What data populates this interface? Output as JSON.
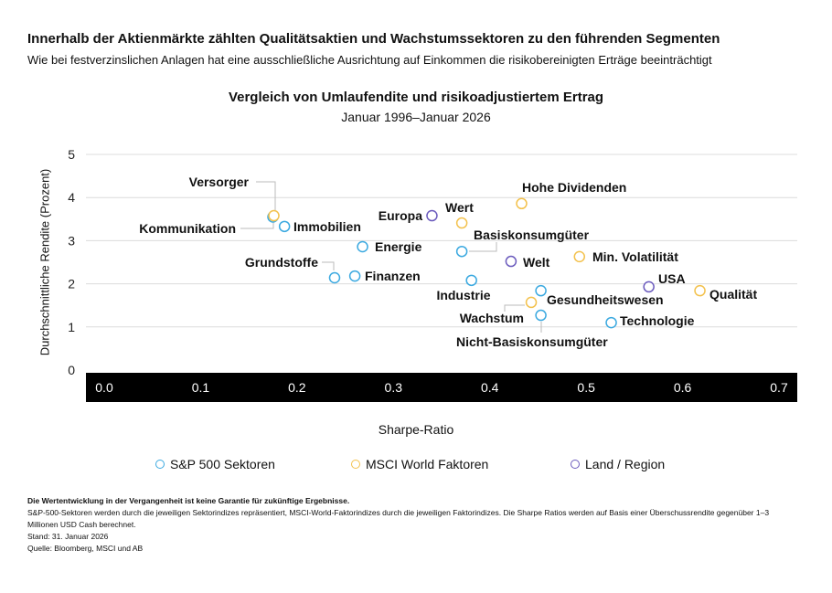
{
  "header": {
    "title": "Innerhalb der Aktienmärkte zählten Qualitätsaktien und Wachstumssektoren zu den führenden Segmenten",
    "subtitle": "Wie bei festverzinslichen Anlagen hat eine ausschließliche Ausrichtung auf Einkommen die risikobereinigten Erträge beeinträchtigt"
  },
  "chart_data": {
    "type": "scatter",
    "title": "Vergleich von Umlaufendite und risikoadjustiertem Ertrag",
    "subtitle": "Januar 1996–Januar 2026",
    "xlabel": "Sharpe-Ratio",
    "ylabel": "Durchschnittliche Rendite (Prozent)",
    "xlim": [
      0,
      0.7
    ],
    "ylim": [
      0,
      5
    ],
    "xticks": [
      "0.0",
      "0.1",
      "0.2",
      "0.3",
      "0.4",
      "0.5",
      "0.6",
      "0.7"
    ],
    "yticks": [
      "0",
      "1",
      "2",
      "3",
      "4",
      "5"
    ],
    "grid": true,
    "legend_position": "bottom",
    "colors": {
      "S&P 500 Sektoren": "#3ba9e0",
      "MSCI World Faktoren": "#f3c14c",
      "Land / Region": "#6b5bbd"
    },
    "series": [
      {
        "name": "S&P 500 Sektoren",
        "points": [
          {
            "label": "Kommunikation",
            "x": 0.175,
            "y": 3.55
          },
          {
            "label": "Immobilien",
            "x": 0.187,
            "y": 3.33
          },
          {
            "label": "Energie",
            "x": 0.268,
            "y": 2.86
          },
          {
            "label": "Basiskonsumgüter",
            "x": 0.371,
            "y": 2.75
          },
          {
            "label": "Grundstoffe",
            "x": 0.239,
            "y": 2.14
          },
          {
            "label": "Finanzen",
            "x": 0.26,
            "y": 2.18
          },
          {
            "label": "Industrie",
            "x": 0.381,
            "y": 2.08
          },
          {
            "label": "Gesundheitswesen",
            "x": 0.453,
            "y": 1.84
          },
          {
            "label": "Nicht-Basiskonsumgüter",
            "x": 0.453,
            "y": 1.27
          },
          {
            "label": "Technologie",
            "x": 0.526,
            "y": 1.1
          }
        ]
      },
      {
        "name": "MSCI World Faktoren",
        "points": [
          {
            "label": "Versorger",
            "x": 0.176,
            "y": 3.58
          },
          {
            "label": "Wert",
            "x": 0.371,
            "y": 3.41
          },
          {
            "label": "Hohe Dividenden",
            "x": 0.433,
            "y": 3.86
          },
          {
            "label": "Min. Volatilität",
            "x": 0.493,
            "y": 2.63
          },
          {
            "label": "Qualität",
            "x": 0.618,
            "y": 1.84
          },
          {
            "label": "Wachstum",
            "x": 0.443,
            "y": 1.57
          }
        ]
      },
      {
        "name": "Land / Region",
        "points": [
          {
            "label": "Europa",
            "x": 0.34,
            "y": 3.58
          },
          {
            "label": "Welt",
            "x": 0.422,
            "y": 2.52
          },
          {
            "label": "USA",
            "x": 0.565,
            "y": 1.93
          }
        ]
      }
    ]
  },
  "footer": {
    "disclaimer": "Die Wertentwicklung in der Vergangenheit ist keine Garantie für zukünftige Ergebnisse.",
    "note": "S&P-500-Sektoren werden durch die jeweiligen Sektorindizes repräsentiert, MSCI-World-Faktorindizes durch die jeweiligen Faktorindizes. Die Sharpe Ratios werden auf Basis einer Überschussrendite gegenüber 1–3 Millionen USD Cash berechnet.",
    "date": "Stand: 31. Januar 2026",
    "source": "Quelle: Bloomberg, MSCI und AB"
  }
}
